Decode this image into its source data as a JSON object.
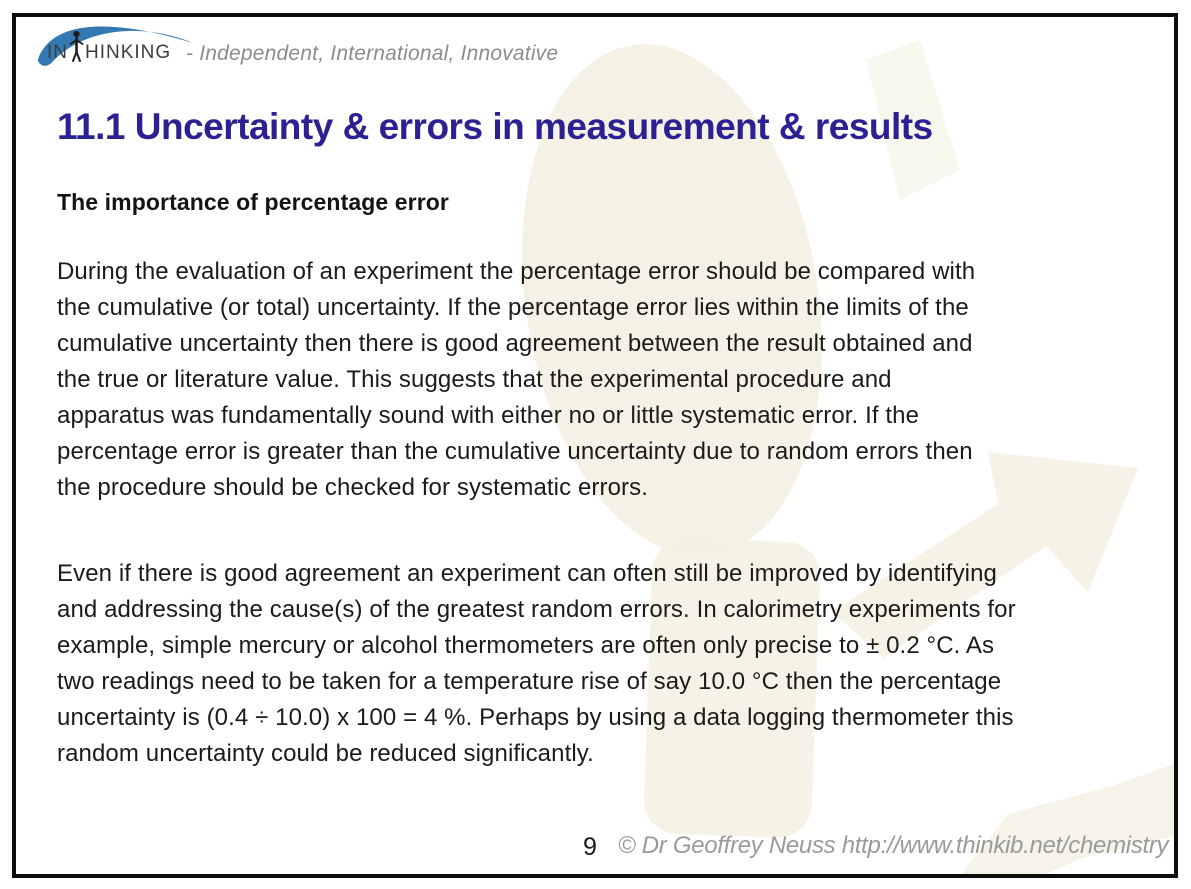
{
  "header": {
    "logo": {
      "brand": "INTHINKING",
      "brand_prefix": "IN",
      "brand_suffix": "HINKING",
      "tagline": "- Independent, International, Innovative"
    }
  },
  "content": {
    "title": "11.1 Uncertainty & errors in measurement & results",
    "subheading": "The importance of percentage error",
    "paragraphs": [
      {
        "lines": [
          "During the evaluation of an experiment the percentage error should be compared with",
          "the cumulative (or total) uncertainty. If the percentage error lies within the limits of the",
          "cumulative uncertainty then there is good agreement between the result obtained and",
          "the true or literature value. This suggests that the experimental procedure and",
          "apparatus was fundamentally sound with either no or little systematic error. If the",
          "percentage error is greater than the cumulative uncertainty due to random errors then",
          "the procedure should be checked for systematic errors."
        ]
      },
      {
        "lines": [
          "Even if there is good agreement an experiment can often still be improved by identifying",
          "and addressing the cause(s) of the greatest random errors. In calorimetry experiments for",
          "example, simple mercury or alcohol thermometers are often only precise to ± 0.2 °C. As",
          "two readings need to be taken for a temperature rise of say 10.0 °C then the percentage",
          "uncertainty is (0.4 ÷ 10.0) x 100 = 4 %. Perhaps by using a data logging thermometer this",
          "random uncertainty could be reduced significantly."
        ]
      }
    ]
  },
  "footer": {
    "page_number": "9",
    "copyright": "© Dr Geoffrey Neuss http://www.thinkib.net/chemistry"
  },
  "colors": {
    "title_indigo": "#2b2193",
    "swoosh_blue": "#3579b3",
    "watermark_beige": "#f4f1e2",
    "tagline_gray": "#8c8c8c",
    "copyright_gray": "#9a9a9a",
    "border_black": "#0d0d0d"
  },
  "icons": {
    "swoosh_arc": "blue crescent arc over brand text",
    "thinking_person": "stylized person forming the T of INTHINKING",
    "thinker_watermark": "faint beige silhouette of thinking figure"
  }
}
